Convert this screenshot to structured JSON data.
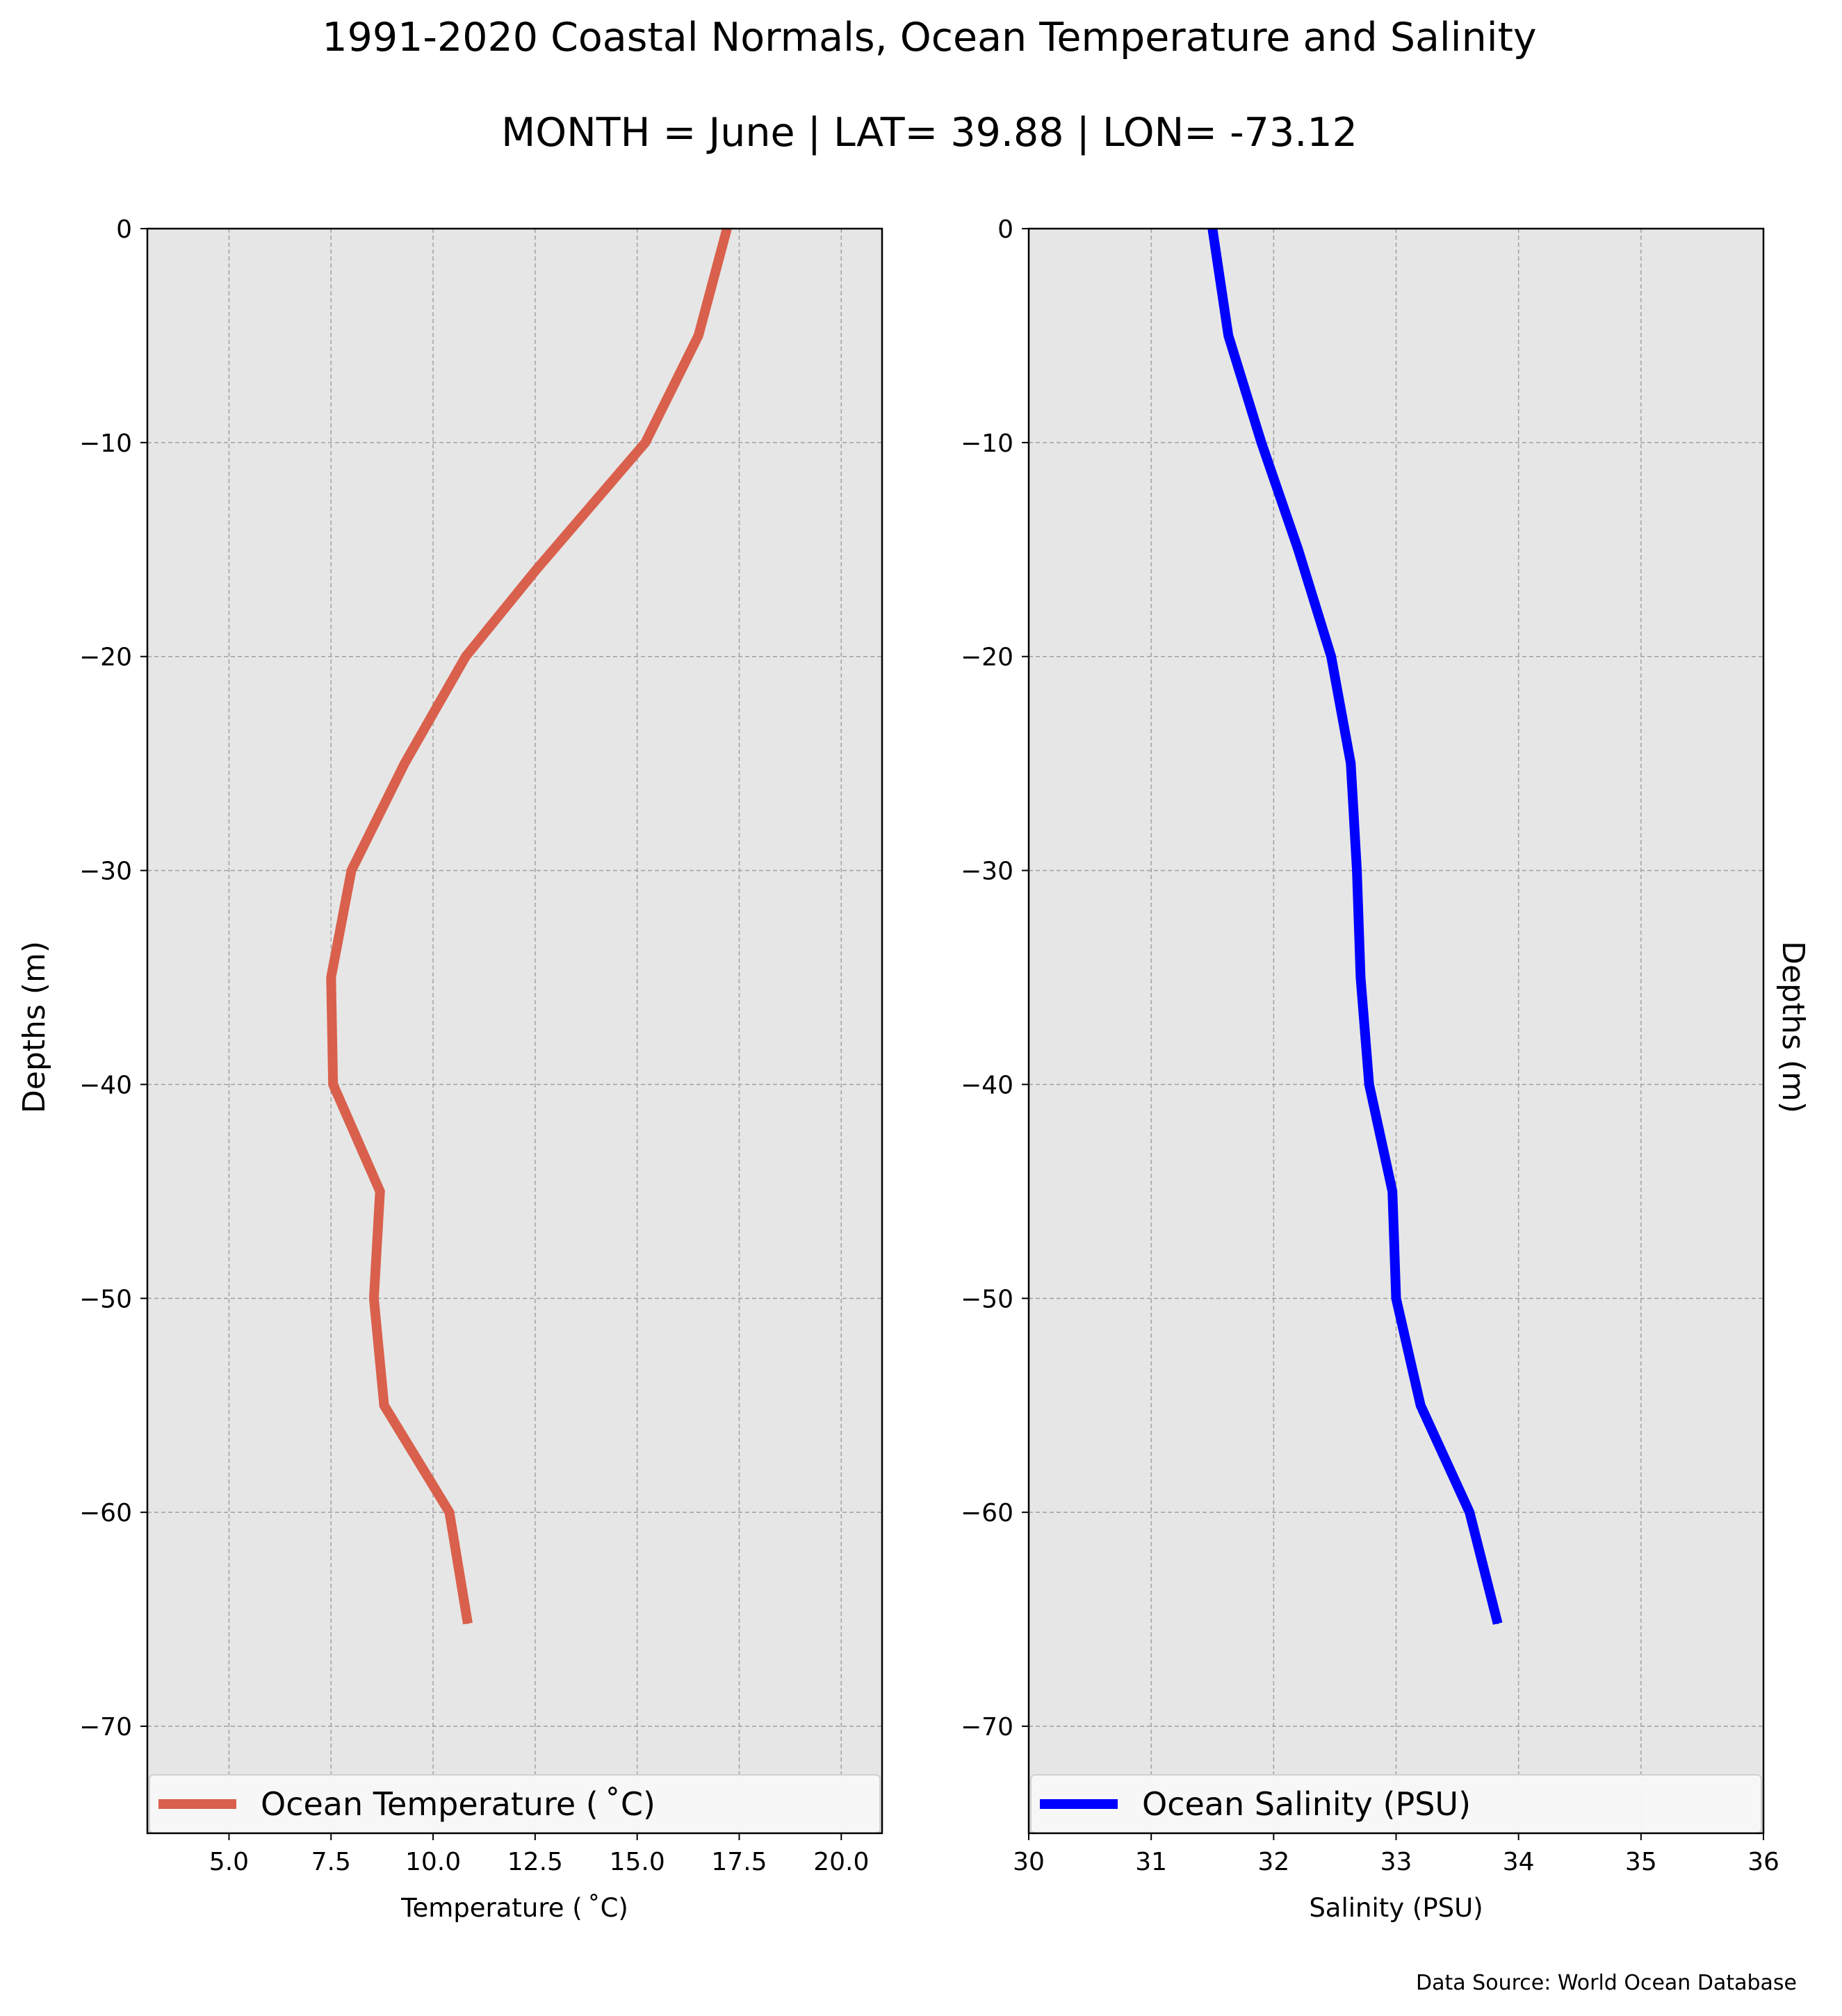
{
  "figure": {
    "title_line1": "1991-2020 Coastal Normals, Ocean Temperature and Salinity",
    "title_line2": "MONTH = June | LAT= 39.88 | LON= -73.12",
    "source_note": "Data Source: World Ocean Database",
    "panel_background": "#e6e6e6",
    "grid_color": "#a0a0a0"
  },
  "chart_data": [
    {
      "type": "line",
      "xlabel": "Temperature ($^\\circ$C)",
      "xlabel_display": "Temperature ( ˚C)",
      "ylabel": "Depths (m)",
      "xlim": [
        3,
        21
      ],
      "ylim": [
        -75,
        0
      ],
      "xticks": [
        5.0,
        7.5,
        10.0,
        12.5,
        15.0,
        17.5,
        20.0
      ],
      "xtick_labels": [
        "5.0",
        "7.5",
        "10.0",
        "12.5",
        "15.0",
        "17.5",
        "20.0"
      ],
      "yticks": [
        0,
        -10,
        -20,
        -30,
        -40,
        -50,
        -60,
        -70
      ],
      "ytick_labels": [
        "0",
        "−10",
        "−20",
        "−30",
        "−40",
        "−50",
        "−60",
        "−70"
      ],
      "grid": true,
      "legend_position": "lower",
      "series": [
        {
          "name": "Ocean Temperature ( ˚C)",
          "color": "#d9604c",
          "x": [
            17.2,
            16.5,
            15.2,
            12.5,
            10.8,
            9.3,
            8.0,
            7.5,
            7.55,
            8.7,
            8.55,
            8.8,
            10.4,
            10.85
          ],
          "y": [
            0,
            -5,
            -10,
            -16,
            -20,
            -25,
            -30,
            -35,
            -40,
            -45,
            -50,
            -55,
            -60,
            -65.2
          ]
        }
      ]
    },
    {
      "type": "line",
      "xlabel": "Salinity (PSU)",
      "ylabel": "Depths (m)",
      "xlim": [
        30,
        36
      ],
      "ylim": [
        -75,
        0
      ],
      "xticks": [
        30,
        31,
        32,
        33,
        34,
        35,
        36
      ],
      "xtick_labels": [
        "30",
        "31",
        "32",
        "33",
        "34",
        "35",
        "36"
      ],
      "yticks": [
        0,
        -10,
        -20,
        -30,
        -40,
        -50,
        -60,
        -70
      ],
      "ytick_labels": [
        "0",
        "−10",
        "−20",
        "−30",
        "−40",
        "−50",
        "−60",
        "−70"
      ],
      "grid": true,
      "legend_position": "lower",
      "series": [
        {
          "name": "Ocean Salinity (PSU)",
          "color": "#0000ff",
          "x": [
            31.5,
            31.63,
            31.9,
            32.2,
            32.47,
            32.63,
            32.68,
            32.71,
            32.78,
            32.97,
            33.0,
            33.2,
            33.6,
            33.83
          ],
          "y": [
            0,
            -5,
            -10,
            -15,
            -20,
            -25,
            -30,
            -35,
            -40,
            -45,
            -50,
            -55,
            -60,
            -65.2
          ]
        }
      ]
    }
  ]
}
